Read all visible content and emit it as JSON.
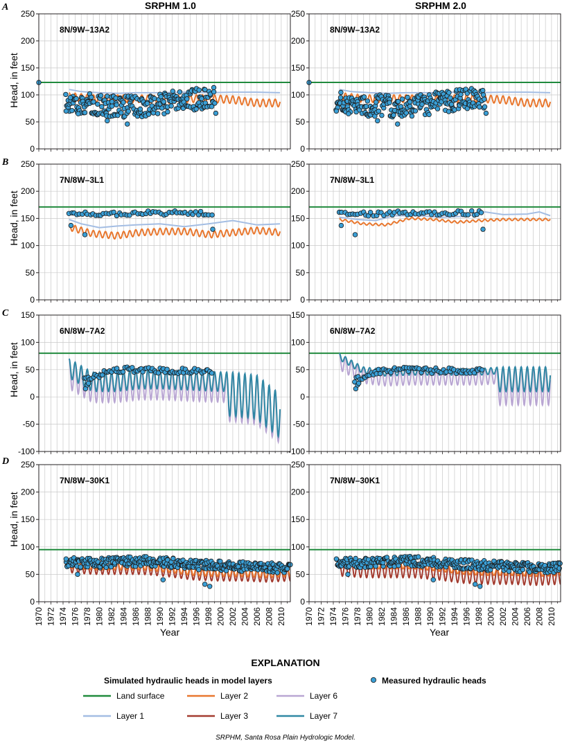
{
  "columns": [
    "SRPHM 1.0",
    "SRPHM 2.0"
  ],
  "rows": [
    {
      "letter": "A",
      "well": "8N/9W–13A2"
    },
    {
      "letter": "B",
      "well": "7N/8W–3L1"
    },
    {
      "letter": "C",
      "well": "6N/8W–7A2"
    },
    {
      "letter": "D",
      "well": "7N/8W–30K1"
    }
  ],
  "ylabel": "Head, in feet",
  "xlabel": "Year",
  "x_ticks": [
    "1970",
    "1972",
    "1974",
    "1976",
    "1978",
    "1980",
    "1982",
    "1984",
    "1986",
    "1988",
    "1990",
    "1992",
    "1994",
    "1996",
    "1998",
    "2000",
    "2002",
    "2004",
    "2006",
    "2008",
    "2010"
  ],
  "legend": {
    "title": "EXPLANATION",
    "subtitle": "Simulated hydraulic heads in model layers",
    "measured_label": "Measured hydraulic heads",
    "items": [
      {
        "key": "land",
        "label": "Land surface"
      },
      {
        "key": "l1",
        "label": "Layer 1"
      },
      {
        "key": "l2",
        "label": "Layer 2"
      },
      {
        "key": "l3",
        "label": "Layer 3"
      },
      {
        "key": "l6",
        "label": "Layer 6"
      },
      {
        "key": "l7",
        "label": "Layer 7"
      }
    ]
  },
  "colors": {
    "land": "#1f8a3c",
    "l1": "#a3bde3",
    "l2": "#e8772e",
    "l3": "#a33b2f",
    "l6": "#b9a6d3",
    "l7": "#2f87a3",
    "marker": "#3a9fd6",
    "marker_edge": "#1a1a1a",
    "grid": "#c8c8c8",
    "axis": "#231f20"
  },
  "footnote": "SRPHM, Santa Rosa Plain Hydrologic Model.",
  "chart_data": [
    {
      "type": "line",
      "row": "A",
      "column": "SRPHM 1.0",
      "well": "8N/9W–13A2",
      "xlim": [
        1970,
        2011.5
      ],
      "ylim": [
        0,
        250
      ],
      "yticks": [
        0,
        50,
        100,
        150,
        200,
        250
      ],
      "land_surface": 123,
      "series": [
        {
          "key": "l1",
          "name": "Layer 1",
          "kind": "smooth",
          "x": [
            1975,
            1977,
            1980,
            1983,
            1986,
            1990,
            1994,
            1998,
            2002,
            2006,
            2009.8
          ],
          "y": [
            110,
            106,
            104,
            103,
            104,
            104,
            105,
            104,
            105,
            105,
            104
          ]
        },
        {
          "key": "l2",
          "name": "Layer 2",
          "kind": "seasonal",
          "x0": 1975,
          "x1": 2009.8,
          "top": [
            104,
            100,
            100,
            100,
            98,
            100,
            100,
            98,
            92,
            92
          ],
          "amp": 14
        }
      ],
      "measured": {
        "gen": "scatter",
        "x0": 1974.5,
        "x1": 1999,
        "center": [
          88,
          84,
          80,
          80,
          78,
          80,
          85,
          90,
          92,
          95
        ],
        "spread": 20,
        "n": 240,
        "extra": [
          [
            1970,
            123
          ],
          [
            1974.5,
            70
          ],
          [
            1975.2,
            95
          ],
          [
            1976.5,
            65
          ],
          [
            1981.3,
            52
          ],
          [
            1984.6,
            46
          ],
          [
            1999.2,
            66
          ]
        ]
      }
    },
    {
      "type": "line",
      "row": "A",
      "column": "SRPHM 2.0",
      "well": "8N/9W–13A2",
      "xlim": [
        1970,
        2011.5
      ],
      "ylim": [
        0,
        250
      ],
      "yticks": [
        0,
        50,
        100,
        150,
        200,
        250
      ],
      "land_surface": 123,
      "series": [
        {
          "key": "l1",
          "name": "Layer 1",
          "kind": "smooth",
          "x": [
            1975,
            1977,
            1980,
            1983,
            1986,
            1990,
            1994,
            1998,
            2002,
            2006,
            2009.8
          ],
          "y": [
            110,
            106,
            104,
            103,
            104,
            104,
            105,
            104,
            105,
            105,
            104
          ]
        },
        {
          "key": "l2",
          "name": "Layer 2",
          "kind": "seasonal",
          "x0": 1975,
          "x1": 2009.8,
          "top": [
            104,
            100,
            100,
            100,
            98,
            100,
            100,
            98,
            92,
            92
          ],
          "amp": 14
        }
      ],
      "measured": {
        "gen": "scatter",
        "x0": 1974.5,
        "x1": 1999,
        "center": [
          88,
          84,
          80,
          80,
          78,
          80,
          85,
          90,
          92,
          95
        ],
        "spread": 20,
        "n": 240,
        "extra": [
          [
            1970,
            123
          ],
          [
            1974.5,
            70
          ],
          [
            1975.2,
            95
          ],
          [
            1976.5,
            65
          ],
          [
            1981.3,
            52
          ],
          [
            1984.6,
            46
          ],
          [
            1999.2,
            66
          ]
        ]
      }
    },
    {
      "type": "line",
      "row": "B",
      "column": "SRPHM 1.0",
      "well": "7N/8W–3L1",
      "xlim": [
        1970,
        2011.5
      ],
      "ylim": [
        0,
        250
      ],
      "yticks": [
        0,
        50,
        100,
        150,
        200,
        250
      ],
      "land_surface": 171,
      "series": [
        {
          "key": "l1",
          "name": "Layer 1",
          "kind": "smooth",
          "x": [
            1975,
            1977,
            1980,
            1983,
            1986,
            1990,
            1994,
            1998,
            2002,
            2006,
            2009.8
          ],
          "y": [
            148,
            140,
            133,
            136,
            138,
            140,
            135,
            140,
            146,
            138,
            140
          ]
        },
        {
          "key": "l2",
          "name": "Layer 2",
          "kind": "seasonal",
          "x0": 1975,
          "x1": 2009.8,
          "top": [
            140,
            128,
            124,
            130,
            132,
            132,
            126,
            130,
            134,
            130
          ],
          "amp": 12
        }
      ],
      "measured": {
        "gen": "scatter",
        "x0": 1975,
        "x1": 1998.5,
        "center": [
          160,
          158,
          158,
          159,
          160,
          160,
          160,
          160,
          160,
          160
        ],
        "spread": 4,
        "n": 55,
        "extra": [
          [
            1975.3,
            137
          ],
          [
            1977.6,
            120
          ],
          [
            1998.7,
            130
          ]
        ]
      }
    },
    {
      "type": "line",
      "row": "B",
      "column": "SRPHM 2.0",
      "well": "7N/8W–3L1",
      "xlim": [
        1970,
        2011.5
      ],
      "ylim": [
        0,
        250
      ],
      "yticks": [
        0,
        50,
        100,
        150,
        200,
        250
      ],
      "land_surface": 171,
      "series": [
        {
          "key": "l1",
          "name": "Layer 1",
          "kind": "smooth",
          "x": [
            1975,
            1978,
            1981,
            1984,
            1988,
            1992,
            1996,
            1999,
            2002,
            2006,
            2008,
            2009.8
          ],
          "y": [
            152,
            148,
            146,
            155,
            155,
            152,
            154,
            162,
            157,
            158,
            162,
            155
          ]
        },
        {
          "key": "l2",
          "name": "Layer 2",
          "kind": "seasonal",
          "x0": 1975,
          "x1": 2009.8,
          "top": [
            150,
            142,
            140,
            152,
            150,
            145,
            148,
            150,
            150,
            150
          ],
          "amp": 4
        }
      ],
      "measured": {
        "gen": "scatter",
        "x0": 1975,
        "x1": 1998.5,
        "center": [
          160,
          158,
          158,
          159,
          160,
          160,
          160,
          160,
          160,
          160
        ],
        "spread": 4,
        "n": 55,
        "extra": [
          [
            1975.3,
            137
          ],
          [
            1977.6,
            120
          ],
          [
            1998.7,
            130
          ]
        ]
      }
    },
    {
      "type": "line",
      "row": "C",
      "column": "SRPHM 1.0",
      "well": "6N/8W–7A2",
      "xlim": [
        1970,
        2011.5
      ],
      "ylim": [
        -100,
        150
      ],
      "yticks": [
        -100,
        -50,
        0,
        50,
        100,
        150
      ],
      "land_surface": 80,
      "series": [
        {
          "key": "l6",
          "name": "Layer 6",
          "kind": "seasonal",
          "x0": 1975,
          "x1": 2009.8,
          "top": [
            70,
            45,
            45,
            50,
            50,
            48,
            46,
            45,
            40,
            5
          ],
          "amp": 55,
          "deep_after": 2001,
          "deep_amp": 90
        },
        {
          "key": "l7",
          "name": "Layer 7",
          "kind": "seasonal",
          "x0": 1975,
          "x1": 2009.8,
          "top": [
            70,
            45,
            45,
            50,
            50,
            48,
            46,
            45,
            40,
            5
          ],
          "amp": 35,
          "deep_after": 2001,
          "deep_amp": 80
        }
      ],
      "measured": {
        "gen": "scatter",
        "x0": 1977.5,
        "x1": 1998.5,
        "center": [
          30,
          40,
          48,
          50,
          50,
          48,
          48,
          48,
          48,
          48
        ],
        "spread": 5,
        "n": 70,
        "extra": [
          [
            1977.7,
            15
          ],
          [
            1978.0,
            22
          ],
          [
            1978.2,
            25
          ]
        ]
      }
    },
    {
      "type": "line",
      "row": "C",
      "column": "SRPHM 2.0",
      "well": "6N/8W–7A2",
      "xlim": [
        1970,
        2011.5
      ],
      "ylim": [
        -100,
        150
      ],
      "yticks": [
        -100,
        -50,
        0,
        50,
        100,
        150
      ],
      "land_surface": 80,
      "series": [
        {
          "key": "l6",
          "name": "Layer 6",
          "kind": "seasonal",
          "x0": 1975,
          "x1": 2009.8,
          "top": [
            80,
            55,
            50,
            52,
            52,
            52,
            52,
            55,
            55,
            55
          ],
          "amp": 30,
          "deep_after": 2001,
          "deep_amp": 70
        },
        {
          "key": "l7",
          "name": "Layer 7",
          "kind": "seasonal",
          "x0": 1975,
          "x1": 2009.8,
          "top": [
            80,
            55,
            50,
            52,
            52,
            52,
            52,
            55,
            55,
            55
          ],
          "amp": 12,
          "deep_after": 2001,
          "deep_amp": 45
        }
      ],
      "measured": {
        "gen": "scatter",
        "x0": 1977.5,
        "x1": 1998.5,
        "center": [
          30,
          40,
          48,
          50,
          50,
          48,
          48,
          48,
          48,
          48
        ],
        "spread": 5,
        "n": 70,
        "extra": [
          [
            1977.7,
            15
          ],
          [
            1978.0,
            22
          ],
          [
            1978.2,
            25
          ]
        ]
      }
    },
    {
      "type": "line",
      "row": "D",
      "column": "SRPHM 1.0",
      "well": "7N/8W–30K1",
      "xlim": [
        1970,
        2011.5
      ],
      "ylim": [
        0,
        250
      ],
      "yticks": [
        0,
        50,
        100,
        150,
        200,
        250
      ],
      "land_surface": 95,
      "series": [
        {
          "key": "l3",
          "name": "Layer 3",
          "kind": "seasonal",
          "x0": 1975,
          "x1": 2011.5,
          "top": [
            75,
            72,
            72,
            72,
            68,
            62,
            60,
            60,
            58,
            60
          ],
          "amp": 22
        },
        {
          "key": "l2",
          "name": "Layer 2",
          "kind": "seasonal",
          "x0": 1975,
          "x1": 2011.5,
          "top": [
            75,
            72,
            72,
            72,
            68,
            62,
            60,
            60,
            58,
            60
          ],
          "amp": 14
        }
      ],
      "measured": {
        "gen": "scatter",
        "x0": 1974.5,
        "x1": 2011.5,
        "center": [
          72,
          70,
          72,
          74,
          72,
          68,
          66,
          64,
          62,
          62
        ],
        "spread": 9,
        "n": 320,
        "extra": [
          [
            1974.5,
            78
          ],
          [
            1976.4,
            50
          ],
          [
            1990.5,
            40
          ],
          [
            1997.4,
            32
          ],
          [
            1998.2,
            28
          ]
        ]
      }
    },
    {
      "type": "line",
      "row": "D",
      "column": "SRPHM 2.0",
      "well": "7N/8W–30K1",
      "xlim": [
        1970,
        2011.5
      ],
      "ylim": [
        0,
        250
      ],
      "yticks": [
        0,
        50,
        100,
        150,
        200,
        250
      ],
      "land_surface": 95,
      "series": [
        {
          "key": "l3",
          "name": "Layer 3",
          "kind": "seasonal",
          "x0": 1975,
          "x1": 2011.5,
          "top": [
            75,
            72,
            72,
            72,
            68,
            62,
            60,
            60,
            58,
            60
          ],
          "amp": 28
        },
        {
          "key": "l2",
          "name": "Layer 2",
          "kind": "seasonal",
          "x0": 1975,
          "x1": 2011.5,
          "top": [
            75,
            72,
            72,
            72,
            68,
            62,
            60,
            60,
            58,
            60
          ],
          "amp": 12
        }
      ],
      "measured": {
        "gen": "scatter",
        "x0": 1974.5,
        "x1": 2011.5,
        "center": [
          72,
          70,
          72,
          74,
          72,
          68,
          66,
          64,
          62,
          62
        ],
        "spread": 9,
        "n": 320,
        "extra": [
          [
            1974.5,
            78
          ],
          [
            1976.4,
            50
          ],
          [
            1990.5,
            40
          ],
          [
            1997.4,
            32
          ],
          [
            1998.2,
            28
          ]
        ]
      }
    }
  ]
}
